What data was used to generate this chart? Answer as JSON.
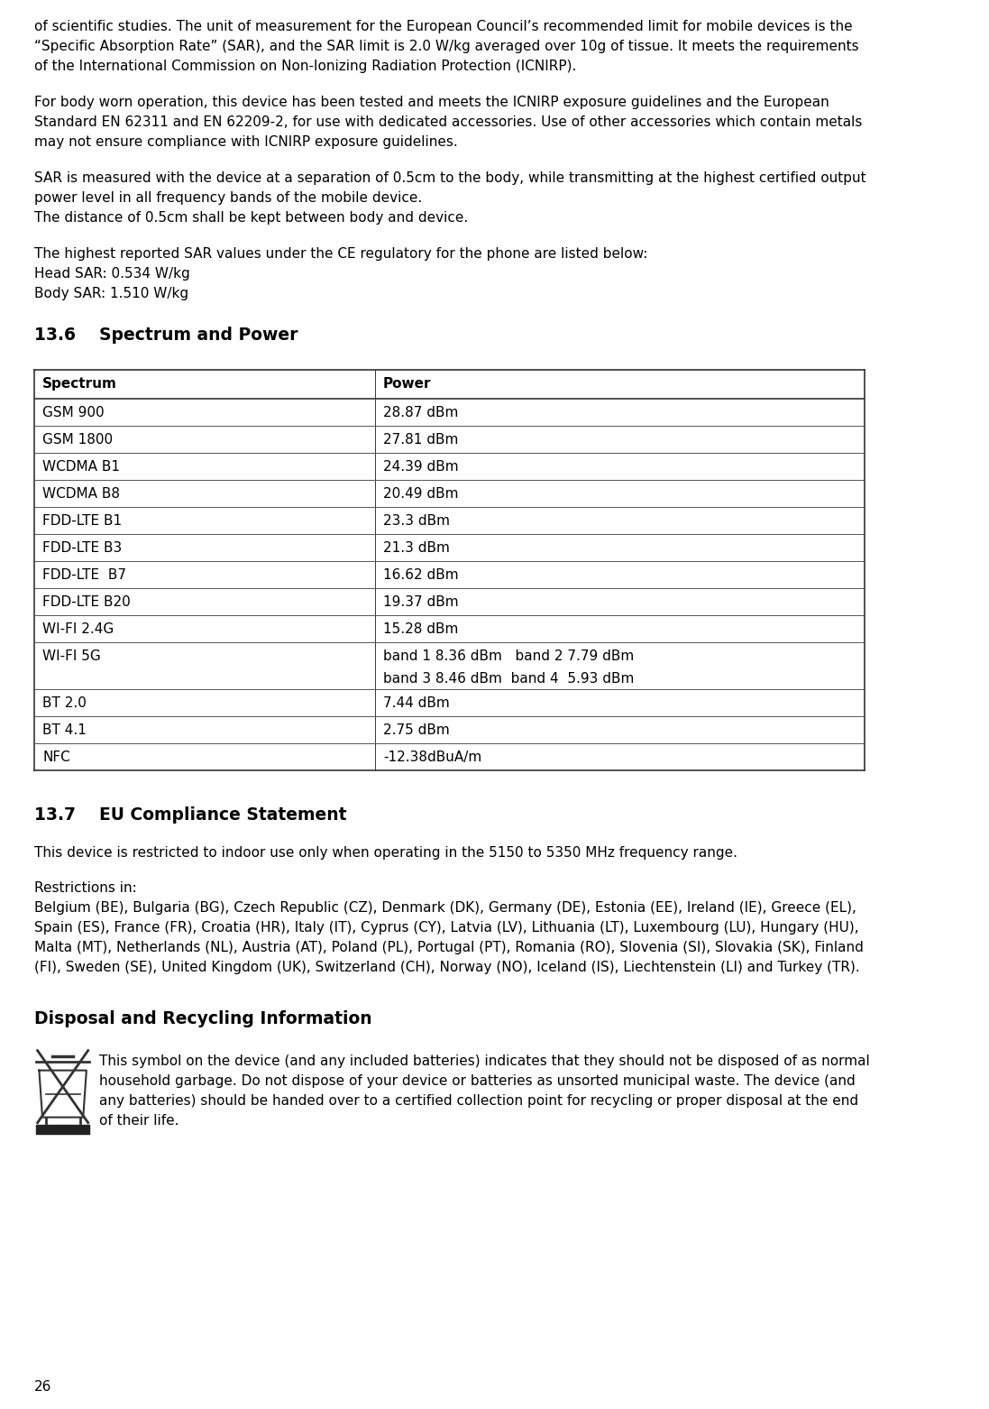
{
  "bg_color": "#ffffff",
  "para1_lines": [
    "of scientific studies. The unit of measurement for the European Council’s recommended limit for mobile devices is the",
    "“Specific Absorption Rate” (SAR), and the SAR limit is 2.0 W/kg averaged over 10g of tissue. It meets the requirements",
    "of the International Commission on Non-Ionizing Radiation Protection (ICNIRP)."
  ],
  "para2_lines": [
    "For body worn operation, this device has been tested and meets the ICNIRP exposure guidelines and the European",
    "Standard EN 62311 and EN 62209-2, for use with dedicated accessories. Use of other accessories which contain metals",
    "may not ensure compliance with ICNIRP exposure guidelines."
  ],
  "para3_lines": [
    "SAR is measured with the device at a separation of 0.5cm to the body, while transmitting at the highest certified output",
    "power level in all frequency bands of the mobile device.",
    "The distance of 0.5cm shall be kept between body and device."
  ],
  "para4_lines": [
    "The highest reported SAR values under the CE regulatory for the phone are listed below:",
    "Head SAR: 0.534 W/kg",
    "Body SAR: 1.510 W/kg"
  ],
  "section1_title": "13.6    Spectrum and Power",
  "table_headers": [
    "Spectrum",
    "Power"
  ],
  "table_rows": [
    [
      "GSM 900",
      "28.87 dBm"
    ],
    [
      "GSM 1800",
      "27.81 dBm"
    ],
    [
      "WCDMA B1",
      "24.39 dBm"
    ],
    [
      "WCDMA B8",
      "20.49 dBm"
    ],
    [
      "FDD-LTE B1",
      "23.3 dBm"
    ],
    [
      "FDD-LTE B3",
      "21.3 dBm"
    ],
    [
      "FDD-LTE  B7",
      "16.62 dBm"
    ],
    [
      "FDD-LTE B20",
      "19.37 dBm"
    ],
    [
      "WI-FI 2.4G",
      "15.28 dBm"
    ],
    [
      "WI-FI 5G",
      "band 1 8.36 dBm   band 2 7.79 dBm\nband 3 8.46 dBm  band 4  5.93 dBm"
    ],
    [
      "BT 2.0",
      "7.44 dBm"
    ],
    [
      "BT 4.1",
      "2.75 dBm"
    ],
    [
      "NFC",
      "-12.38dBuA/m"
    ]
  ],
  "section2_title": "13.7    EU Compliance Statement",
  "eu_para1": "This device is restricted to indoor use only when operating in the 5150 to 5350 MHz frequency range.",
  "eu_para2": "Restrictions in:",
  "eu_para3_lines": [
    "Belgium (BE), Bulgaria (BG), Czech Republic (CZ), Denmark (DK), Germany (DE), Estonia (EE), Ireland (IE), Greece (EL),",
    "Spain (ES), France (FR), Croatia (HR), Italy (IT), Cyprus (CY), Latvia (LV), Lithuania (LT), Luxembourg (LU), Hungary (HU),",
    "Malta (MT), Netherlands (NL), Austria (AT), Poland (PL), Portugal (PT), Romania (RO), Slovenia (SI), Slovakia (SK), Finland",
    "(FI), Sweden (SE), United Kingdom (UK), Switzerland (CH), Norway (NO), Iceland (IS), Liechtenstein (LI) and Turkey (TR)."
  ],
  "section3_title": "Disposal and Recycling Information",
  "disposal_lines": [
    "This symbol on the device (and any included batteries) indicates that they should not be disposed of as normal",
    "household garbage. Do not dispose of your device or batteries as unsorted municipal waste. The device (and",
    "any batteries) should be handed over to a certified collection point for recycling or proper disposal at the end",
    "of their life."
  ],
  "page_number": "26"
}
